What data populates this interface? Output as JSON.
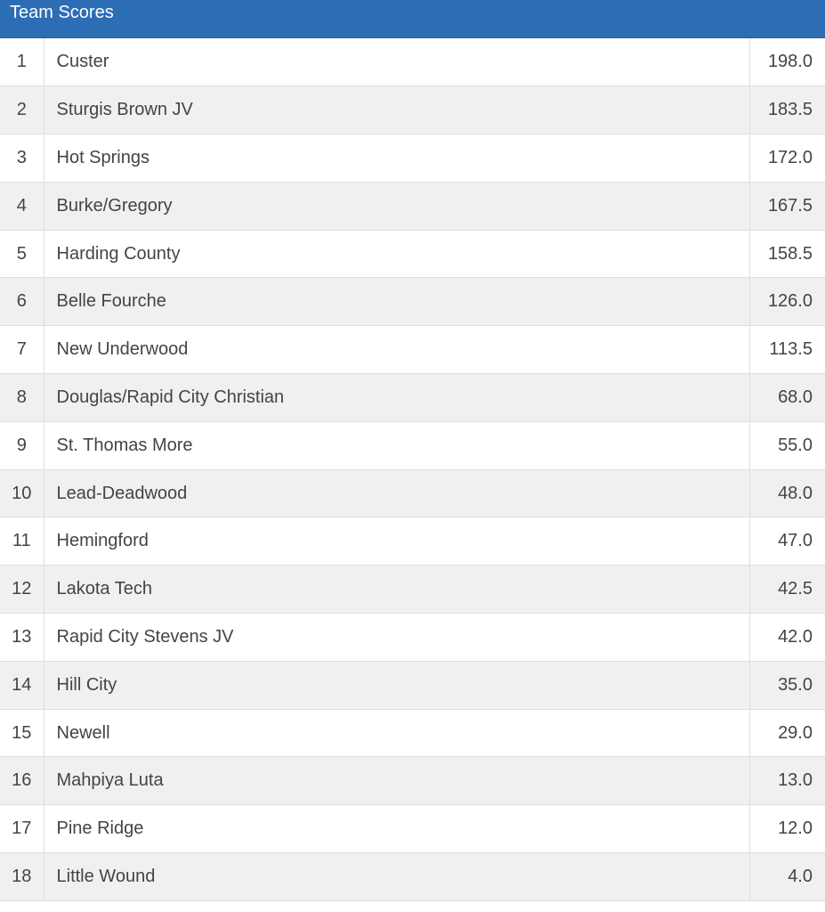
{
  "header": {
    "title": "Team Scores",
    "color": "#2d6db5"
  },
  "rows": [
    {
      "rank": "1",
      "team": "Custer",
      "score": "198.0"
    },
    {
      "rank": "2",
      "team": "Sturgis Brown JV",
      "score": "183.5"
    },
    {
      "rank": "3",
      "team": "Hot Springs",
      "score": "172.0"
    },
    {
      "rank": "4",
      "team": "Burke/Gregory",
      "score": "167.5"
    },
    {
      "rank": "5",
      "team": "Harding County",
      "score": "158.5"
    },
    {
      "rank": "6",
      "team": "Belle Fourche",
      "score": "126.0"
    },
    {
      "rank": "7",
      "team": "New Underwood",
      "score": "113.5"
    },
    {
      "rank": "8",
      "team": "Douglas/Rapid City Christian",
      "score": "68.0"
    },
    {
      "rank": "9",
      "team": "St. Thomas More",
      "score": "55.0"
    },
    {
      "rank": "10",
      "team": "Lead-Deadwood",
      "score": "48.0"
    },
    {
      "rank": "11",
      "team": "Hemingford",
      "score": "47.0"
    },
    {
      "rank": "12",
      "team": "Lakota Tech",
      "score": "42.5"
    },
    {
      "rank": "13",
      "team": "Rapid City Stevens JV",
      "score": "42.0"
    },
    {
      "rank": "14",
      "team": "Hill City",
      "score": "35.0"
    },
    {
      "rank": "15",
      "team": "Newell",
      "score": "29.0"
    },
    {
      "rank": "16",
      "team": "Mahpiya Luta",
      "score": "13.0"
    },
    {
      "rank": "17",
      "team": "Pine Ridge",
      "score": "12.0"
    },
    {
      "rank": "18",
      "team": "Little Wound",
      "score": "4.0"
    }
  ]
}
